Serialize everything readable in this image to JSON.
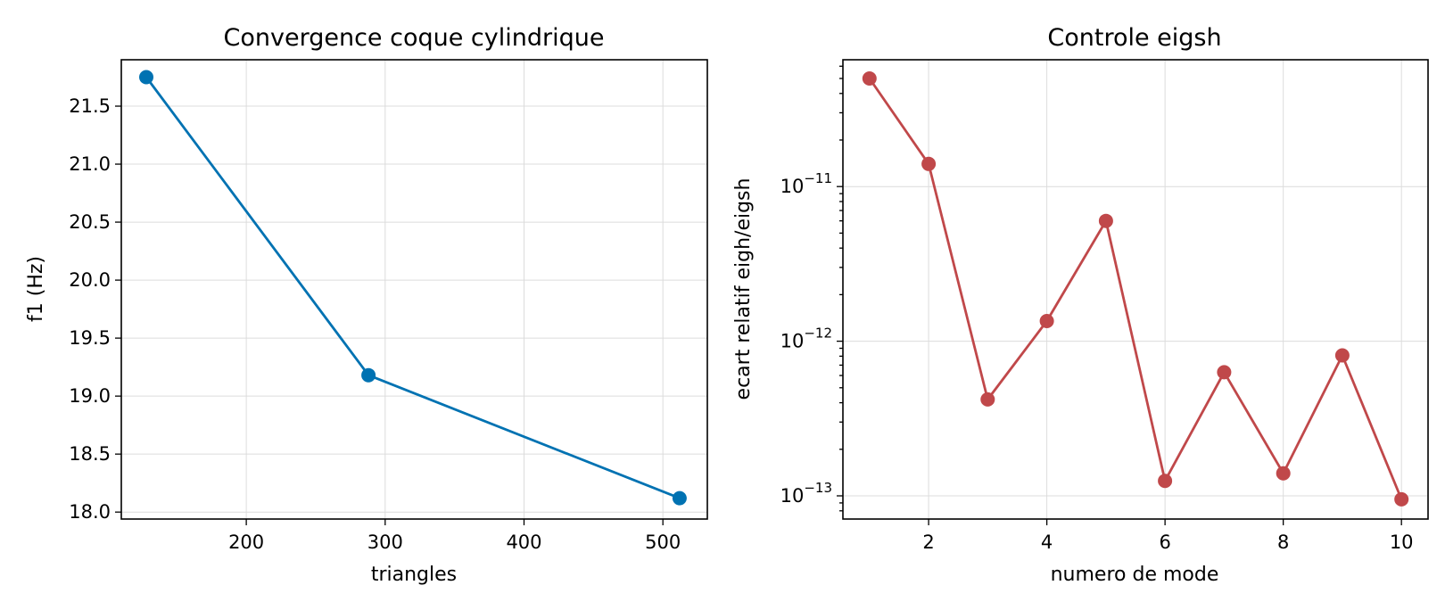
{
  "chart_data": [
    {
      "type": "line",
      "title": "Convergence coque cylindrique",
      "xlabel": "triangles",
      "ylabel": "f1 (Hz)",
      "xlim": [
        110,
        532
      ],
      "ylim": [
        17.94,
        21.9
      ],
      "xticks": [
        200,
        300,
        400,
        500
      ],
      "xtick_labels": [
        "200",
        "300",
        "400",
        "500"
      ],
      "yticks": [
        18.0,
        18.5,
        19.0,
        19.5,
        20.0,
        20.5,
        21.0,
        21.5
      ],
      "ytick_labels": [
        "18.0",
        "18.5",
        "19.0",
        "19.5",
        "20.0",
        "20.5",
        "21.0",
        "21.5"
      ],
      "grid": true,
      "color": "#0072b2",
      "x": [
        128,
        288,
        512
      ],
      "y": [
        21.75,
        19.18,
        18.12
      ]
    },
    {
      "type": "line",
      "title": "Controle eigsh",
      "xlabel": "numero de mode",
      "ylabel": "ecart relatif eigh/eigsh",
      "yscale": "log",
      "xlim": [
        0.55,
        10.45
      ],
      "ylim_log10": [
        -13.15,
        -10.18
      ],
      "xticks": [
        2,
        4,
        6,
        8,
        10
      ],
      "xtick_labels": [
        "2",
        "4",
        "6",
        "8",
        "10"
      ],
      "yticks": [
        1e-13,
        1e-12,
        1e-11
      ],
      "ytick_labels": [
        {
          "base": "10",
          "exp": "−13"
        },
        {
          "base": "10",
          "exp": "−12"
        },
        {
          "base": "10",
          "exp": "−11"
        }
      ],
      "grid": true,
      "color": "#c0484a",
      "x": [
        1,
        2,
        3,
        4,
        5,
        6,
        7,
        8,
        9,
        10
      ],
      "y": [
        5e-11,
        1.4e-11,
        4.2e-13,
        1.35e-12,
        6e-12,
        1.25e-13,
        6.3e-13,
        1.4e-13,
        8.1e-13,
        9.5e-14
      ]
    }
  ]
}
